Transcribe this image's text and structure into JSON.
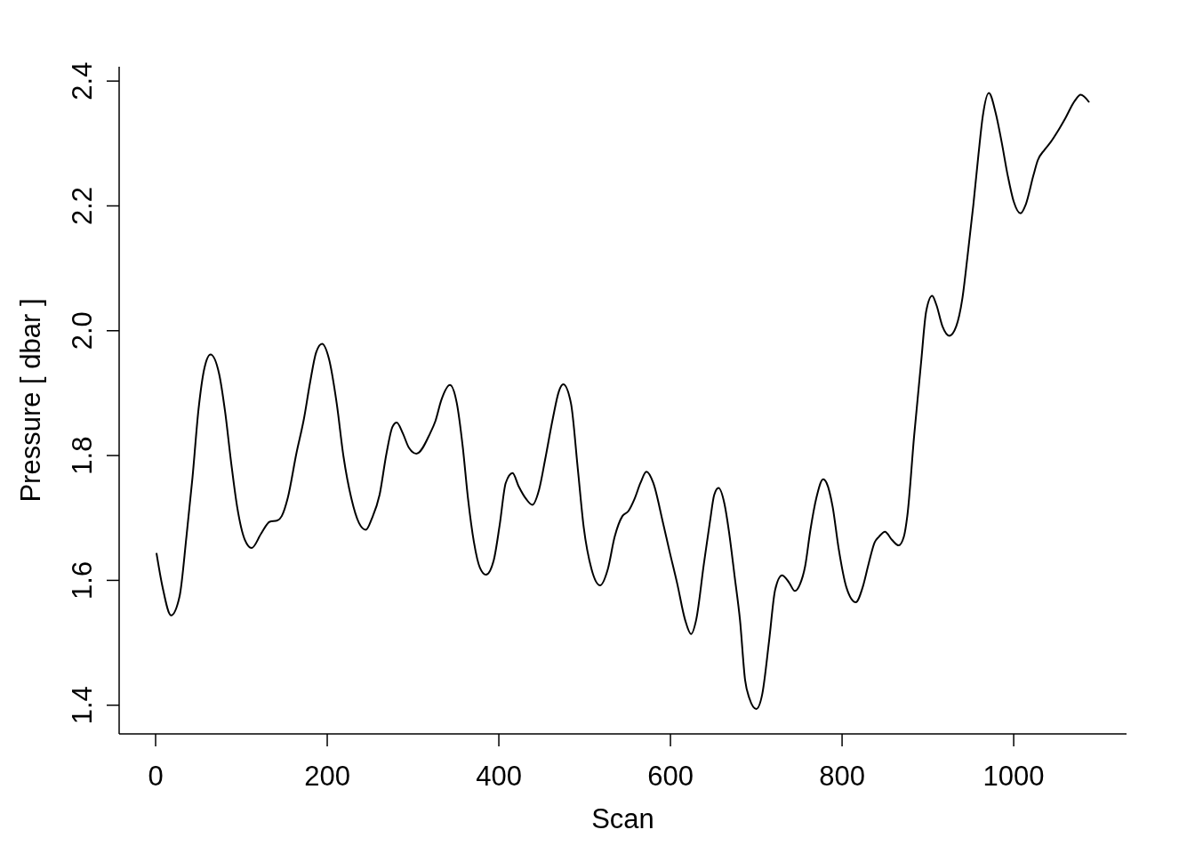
{
  "chart_data": {
    "type": "line",
    "xlabel": "Scan",
    "ylabel": "Pressure [ dbar ]",
    "color": "#000000",
    "x": [
      1,
      8,
      18,
      28,
      36,
      43,
      50,
      57,
      64,
      74,
      81,
      88,
      95,
      104,
      112,
      123,
      133,
      142,
      147,
      154,
      164,
      173,
      180,
      187,
      194,
      202,
      211,
      219,
      228,
      237,
      245,
      252,
      261,
      269,
      276,
      281,
      288,
      295,
      304,
      320,
      326,
      333,
      343,
      351,
      358,
      364,
      371,
      378,
      385,
      394,
      401,
      408,
      416,
      423,
      432,
      439,
      447,
      454,
      463,
      470,
      475,
      484,
      492,
      499,
      508,
      518,
      527,
      535,
      544,
      551,
      558,
      565,
      572,
      580,
      591,
      599,
      608,
      617,
      624,
      630,
      639,
      646,
      651,
      656,
      663,
      668,
      675,
      681,
      687,
      692,
      700,
      707,
      715,
      722,
      730,
      738,
      745,
      751,
      757,
      763,
      770,
      778,
      782,
      789,
      796,
      805,
      816,
      824,
      831,
      838,
      843,
      850,
      858,
      866,
      872,
      876,
      884,
      892,
      898,
      905,
      910,
      917,
      925,
      933,
      940,
      946,
      953,
      959,
      964,
      971,
      979,
      986,
      993,
      1000,
      1008,
      1014,
      1023,
      1028,
      1036,
      1043,
      1052,
      1060,
      1071,
      1078,
      1088
    ],
    "values": [
      1.644,
      1.59,
      1.544,
      1.575,
      1.671,
      1.765,
      1.874,
      1.941,
      1.962,
      1.931,
      1.87,
      1.789,
      1.718,
      1.665,
      1.652,
      1.675,
      1.694,
      1.696,
      1.703,
      1.732,
      1.803,
      1.86,
      1.917,
      1.965,
      1.979,
      1.955,
      1.884,
      1.798,
      1.732,
      1.692,
      1.681,
      1.699,
      1.737,
      1.803,
      1.846,
      1.853,
      1.836,
      1.813,
      1.803,
      1.836,
      1.855,
      1.889,
      1.913,
      1.884,
      1.813,
      1.732,
      1.661,
      1.62,
      1.609,
      1.632,
      1.689,
      1.756,
      1.772,
      1.751,
      1.73,
      1.721,
      1.746,
      1.794,
      1.86,
      1.903,
      1.914,
      1.884,
      1.779,
      1.684,
      1.618,
      1.592,
      1.618,
      1.67,
      1.703,
      1.711,
      1.73,
      1.756,
      1.774,
      1.756,
      1.694,
      1.646,
      1.594,
      1.537,
      1.514,
      1.537,
      1.627,
      1.694,
      1.737,
      1.748,
      1.722,
      1.68,
      1.604,
      1.537,
      1.44,
      1.411,
      1.394,
      1.418,
      1.504,
      1.585,
      1.608,
      1.597,
      1.583,
      1.594,
      1.623,
      1.68,
      1.732,
      1.762,
      1.756,
      1.718,
      1.651,
      1.589,
      1.565,
      1.589,
      1.627,
      1.661,
      1.67,
      1.678,
      1.665,
      1.656,
      1.67,
      1.703,
      1.832,
      1.948,
      2.031,
      2.056,
      2.041,
      2.007,
      1.992,
      2.007,
      2.05,
      2.117,
      2.202,
      2.283,
      2.344,
      2.381,
      2.349,
      2.302,
      2.249,
      2.207,
      2.188,
      2.202,
      2.249,
      2.273,
      2.29,
      2.302,
      2.321,
      2.34,
      2.368,
      2.378,
      2.366
    ],
    "xlim": [
      -42.5,
      1131.5
    ],
    "ylim": [
      1.354,
      2.423
    ],
    "xticks": [
      0,
      200,
      400,
      600,
      800,
      1000
    ],
    "yticks": [
      1.4,
      1.6,
      1.8,
      {
        "value": 2,
        "label": "2.0"
      },
      2.2,
      2.4
    ]
  }
}
